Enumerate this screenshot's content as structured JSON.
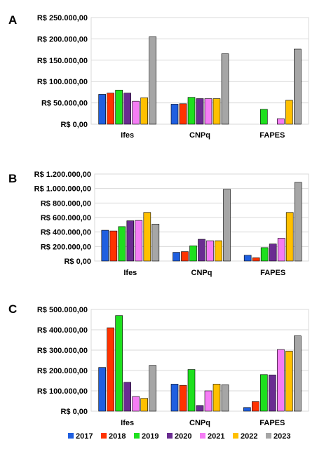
{
  "series_colors": [
    "#1f5fe0",
    "#ff3300",
    "#1ee01e",
    "#6a2c91",
    "#f57cf5",
    "#ffc000",
    "#a6a6a6"
  ],
  "legend": [
    "2017",
    "2018",
    "2019",
    "2020",
    "2021",
    "2022",
    "2023"
  ],
  "chart_data": [
    {
      "type": "bar",
      "panel_label": "A",
      "categories": [
        "Ifes",
        "CNPq",
        "FAPES"
      ],
      "ylim": [
        0,
        250000
      ],
      "yticks": [
        0,
        50000,
        100000,
        150000,
        200000,
        250000
      ],
      "ytick_labels": [
        "R$ 0,00",
        "R$ 50.000,00",
        "R$ 100.000,00",
        "R$ 150.000,00",
        "R$ 200.000,00",
        "R$ 250.000,00"
      ],
      "grid": "horizontal",
      "series": [
        {
          "name": "2017",
          "values": [
            70000,
            47000,
            0
          ]
        },
        {
          "name": "2018",
          "values": [
            73000,
            48000,
            0
          ]
        },
        {
          "name": "2019",
          "values": [
            80000,
            63000,
            35000
          ]
        },
        {
          "name": "2020",
          "values": [
            73000,
            60000,
            0
          ]
        },
        {
          "name": "2021",
          "values": [
            54000,
            60000,
            13000
          ]
        },
        {
          "name": "2022",
          "values": [
            62000,
            60000,
            56000
          ]
        },
        {
          "name": "2023",
          "values": [
            205000,
            165000,
            176000
          ]
        }
      ]
    },
    {
      "type": "bar",
      "panel_label": "B",
      "categories": [
        "Ifes",
        "CNPq",
        "FAPES"
      ],
      "ylim": [
        0,
        1200000
      ],
      "yticks": [
        0,
        200000,
        400000,
        600000,
        800000,
        1000000,
        1200000
      ],
      "ytick_labels": [
        "R$ 0,00",
        "R$ 200.000,00",
        "R$ 400.000,00",
        "R$ 600.000,00",
        "R$ 800.000,00",
        "R$ 1.000.000,00",
        "R$ 1.200.000,00"
      ],
      "grid": "horizontal",
      "series": [
        {
          "name": "2017",
          "values": [
            425000,
            120000,
            80000
          ]
        },
        {
          "name": "2018",
          "values": [
            415000,
            130000,
            45000
          ]
        },
        {
          "name": "2019",
          "values": [
            475000,
            210000,
            185000
          ]
        },
        {
          "name": "2020",
          "values": [
            555000,
            300000,
            235000
          ]
        },
        {
          "name": "2021",
          "values": [
            560000,
            280000,
            315000
          ]
        },
        {
          "name": "2022",
          "values": [
            670000,
            280000,
            670000
          ]
        },
        {
          "name": "2023",
          "values": [
            510000,
            990000,
            1085000
          ]
        }
      ]
    },
    {
      "type": "bar",
      "panel_label": "C",
      "categories": [
        "Ifes",
        "CNPq",
        "FAPES"
      ],
      "ylim": [
        0,
        500000
      ],
      "yticks": [
        0,
        100000,
        200000,
        300000,
        400000,
        500000
      ],
      "ytick_labels": [
        "R$ 0,00",
        "R$ 100.000,00",
        "R$ 200.000,00",
        "R$ 300.000,00",
        "R$ 400.000,00",
        "R$ 500.000,00"
      ],
      "grid": "horizontal",
      "legend_placement": "bottom",
      "series": [
        {
          "name": "2017",
          "values": [
            215000,
            133000,
            18000
          ]
        },
        {
          "name": "2018",
          "values": [
            410000,
            127000,
            47000
          ]
        },
        {
          "name": "2019",
          "values": [
            470000,
            205000,
            180000
          ]
        },
        {
          "name": "2020",
          "values": [
            142000,
            28000,
            178000
          ]
        },
        {
          "name": "2021",
          "values": [
            72000,
            100000,
            303000
          ]
        },
        {
          "name": "2022",
          "values": [
            63000,
            133000,
            295000
          ]
        },
        {
          "name": "2023",
          "values": [
            225000,
            130000,
            370000
          ]
        }
      ]
    }
  ]
}
